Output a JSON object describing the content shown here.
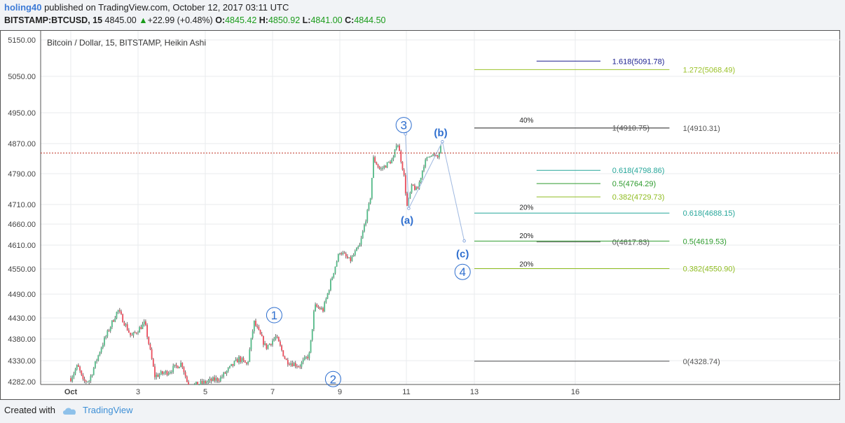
{
  "header": {
    "author": "holing40",
    "published_text": "published on TradingView.com, October 12, 2017 03:11 UTC",
    "symbol": "BITSTAMP:BTCUSD, 15",
    "last": "4845.00",
    "change": "+22.99 (+0.48%)",
    "o_label": "O:",
    "o_value": "4845.42",
    "h_label": "H:",
    "h_value": "4850.92",
    "l_label": "L:",
    "l_value": "4841.00",
    "c_label": "C:",
    "c_value": "4844.50"
  },
  "footer": {
    "created_with": "Created with",
    "brand": "TradingView"
  },
  "colors": {
    "up": "#53b987",
    "down": "#eb4d5c",
    "accent": "#2f6fcf",
    "price_line": "#c0392b"
  },
  "chart_data": {
    "type": "candlestick",
    "title": "Bitcoin / Dollar, 15, BITSTAMP, Heikin Ashi",
    "y_ticks": [
      5150,
      5050,
      4950,
      4870,
      4790,
      4710,
      4660,
      4610,
      4550,
      4490,
      4430,
      4380,
      4330,
      4282
    ],
    "y_range": [
      4282,
      5150
    ],
    "x_ticks": [
      "Oct",
      "3",
      "5",
      "7",
      "9",
      "11",
      "13",
      "16"
    ],
    "last_price": 4845.0,
    "grid": true,
    "price_path": [
      [
        0.0,
        4290
      ],
      [
        0.2,
        4318
      ],
      [
        0.3,
        4300
      ],
      [
        0.35,
        4282
      ],
      [
        0.55,
        4285
      ],
      [
        0.9,
        4360
      ],
      [
        1.4,
        4450
      ],
      [
        1.8,
        4385
      ],
      [
        2.2,
        4418
      ],
      [
        2.5,
        4295
      ],
      [
        2.9,
        4305
      ],
      [
        3.3,
        4325
      ],
      [
        3.5,
        4270
      ],
      [
        4.45,
        4290
      ],
      [
        5.0,
        4335
      ],
      [
        5.25,
        4320
      ],
      [
        5.45,
        4420
      ],
      [
        5.8,
        4360
      ],
      [
        6.1,
        4385
      ],
      [
        6.4,
        4330
      ],
      [
        6.8,
        4318
      ],
      [
        7.1,
        4345
      ],
      [
        7.25,
        4460
      ],
      [
        7.5,
        4450
      ],
      [
        7.8,
        4540
      ],
      [
        8.0,
        4595
      ],
      [
        8.3,
        4570
      ],
      [
        8.6,
        4610
      ],
      [
        8.9,
        4720
      ],
      [
        9.0,
        4830
      ],
      [
        9.2,
        4800
      ],
      [
        9.4,
        4815
      ],
      [
        9.6,
        4830
      ],
      [
        9.7,
        4880
      ],
      [
        9.9,
        4790
      ],
      [
        10.0,
        4705
      ],
      [
        10.15,
        4760
      ],
      [
        10.3,
        4745
      ],
      [
        10.5,
        4815
      ],
      [
        10.7,
        4845
      ],
      [
        10.9,
        4830
      ],
      [
        11.0,
        4860
      ]
    ],
    "waves": [
      {
        "label": "1",
        "x": 6.05,
        "y": 4437,
        "circled": true
      },
      {
        "label": "2",
        "x": 7.8,
        "y": 4288,
        "circled": true
      },
      {
        "label": "3",
        "x": 9.9,
        "y": 4918,
        "circled": true
      },
      {
        "label": "(a)",
        "x": 10.0,
        "y": 4672,
        "circled": false
      },
      {
        "label": "(b)",
        "x": 11.0,
        "y": 4900,
        "circled": false
      },
      {
        "label": "(c)",
        "x": 11.65,
        "y": 4590,
        "circled": false
      },
      {
        "label": "4",
        "x": 11.65,
        "y": 4543,
        "circled": true
      }
    ],
    "projection": [
      [
        9.95,
        4895
      ],
      [
        10.05,
        4700
      ],
      [
        11.05,
        4875
      ],
      [
        11.7,
        4620
      ]
    ],
    "fib_levels": [
      {
        "label": "1.618(5091.78)",
        "price": 5091.78,
        "x1": 13.85,
        "x2": 15.75,
        "color": "#1b1f8f",
        "text_x": 16.1
      },
      {
        "label": "1.272(5068.49)",
        "price": 5068.49,
        "x1": 12.0,
        "x2": 17.8,
        "color": "#9bc229",
        "text_x": 18.2
      },
      {
        "label": "1(4910.75)",
        "price": 4910.75,
        "x1": 12.0,
        "x2": 17.8,
        "color": "#555555",
        "text_x": 16.1
      },
      {
        "label": "1(4910.31)",
        "price": 4910.31,
        "x1": 12.0,
        "x2": 17.8,
        "color": "#555555",
        "text_x": 18.2
      },
      {
        "label": "0.618(4798.86)",
        "price": 4798.86,
        "x1": 13.85,
        "x2": 15.75,
        "color": "#26a69a",
        "text_x": 16.1
      },
      {
        "label": "0.5(4764.29)",
        "price": 4764.29,
        "x1": 13.85,
        "x2": 15.75,
        "color": "#2e9b2e",
        "text_x": 16.1
      },
      {
        "label": "0.382(4729.73)",
        "price": 4729.73,
        "x1": 13.85,
        "x2": 15.75,
        "color": "#8fbc20",
        "text_x": 16.1
      },
      {
        "label": "0.618(4688.15)",
        "price": 4688.15,
        "x1": 12.0,
        "x2": 17.8,
        "color": "#26a69a",
        "text_x": 18.2
      },
      {
        "label": "0(4617.83)",
        "price": 4617.83,
        "x1": 13.85,
        "x2": 15.75,
        "color": "#555555",
        "text_x": 16.1
      },
      {
        "label": "0.5(4619.53)",
        "price": 4619.53,
        "x1": 12.0,
        "x2": 17.8,
        "color": "#2e9b2e",
        "text_x": 18.2
      },
      {
        "label": "0.382(4550.90)",
        "price": 4550.9,
        "x1": 12.0,
        "x2": 17.8,
        "color": "#8fbc20",
        "text_x": 18.2
      },
      {
        "label": "0(4328.74)",
        "price": 4328.74,
        "x1": 12.0,
        "x2": 17.8,
        "color": "#555555",
        "text_x": 18.2
      }
    ],
    "pct_labels": [
      {
        "label": "40%",
        "x": 13.55,
        "y": 4925
      },
      {
        "label": "20%",
        "x": 13.55,
        "y": 4697
      },
      {
        "label": "20%",
        "x": 13.55,
        "y": 4627
      },
      {
        "label": "20%",
        "x": 13.55,
        "y": 4556
      }
    ]
  }
}
